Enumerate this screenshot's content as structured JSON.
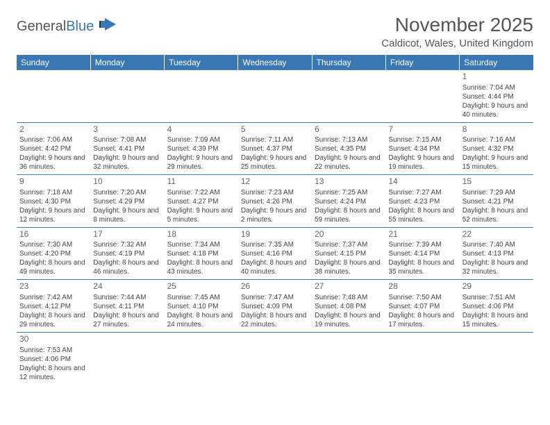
{
  "logo": {
    "text1": "General",
    "text2": "Blue"
  },
  "title": "November 2025",
  "location": "Caldicot, Wales, United Kingdom",
  "colors": {
    "header_bg": "#3a78b5",
    "header_text": "#ffffff",
    "border": "#3a78b5",
    "text": "#444444"
  },
  "weekdays": [
    "Sunday",
    "Monday",
    "Tuesday",
    "Wednesday",
    "Thursday",
    "Friday",
    "Saturday"
  ],
  "weeks": [
    [
      null,
      null,
      null,
      null,
      null,
      null,
      {
        "n": "1",
        "sunrise": "Sunrise: 7:04 AM",
        "sunset": "Sunset: 4:44 PM",
        "daylight": "Daylight: 9 hours and 40 minutes."
      }
    ],
    [
      {
        "n": "2",
        "sunrise": "Sunrise: 7:06 AM",
        "sunset": "Sunset: 4:42 PM",
        "daylight": "Daylight: 9 hours and 36 minutes."
      },
      {
        "n": "3",
        "sunrise": "Sunrise: 7:08 AM",
        "sunset": "Sunset: 4:41 PM",
        "daylight": "Daylight: 9 hours and 32 minutes."
      },
      {
        "n": "4",
        "sunrise": "Sunrise: 7:09 AM",
        "sunset": "Sunset: 4:39 PM",
        "daylight": "Daylight: 9 hours and 29 minutes."
      },
      {
        "n": "5",
        "sunrise": "Sunrise: 7:11 AM",
        "sunset": "Sunset: 4:37 PM",
        "daylight": "Daylight: 9 hours and 25 minutes."
      },
      {
        "n": "6",
        "sunrise": "Sunrise: 7:13 AM",
        "sunset": "Sunset: 4:35 PM",
        "daylight": "Daylight: 9 hours and 22 minutes."
      },
      {
        "n": "7",
        "sunrise": "Sunrise: 7:15 AM",
        "sunset": "Sunset: 4:34 PM",
        "daylight": "Daylight: 9 hours and 19 minutes."
      },
      {
        "n": "8",
        "sunrise": "Sunrise: 7:16 AM",
        "sunset": "Sunset: 4:32 PM",
        "daylight": "Daylight: 9 hours and 15 minutes."
      }
    ],
    [
      {
        "n": "9",
        "sunrise": "Sunrise: 7:18 AM",
        "sunset": "Sunset: 4:30 PM",
        "daylight": "Daylight: 9 hours and 12 minutes."
      },
      {
        "n": "10",
        "sunrise": "Sunrise: 7:20 AM",
        "sunset": "Sunset: 4:29 PM",
        "daylight": "Daylight: 9 hours and 8 minutes."
      },
      {
        "n": "11",
        "sunrise": "Sunrise: 7:22 AM",
        "sunset": "Sunset: 4:27 PM",
        "daylight": "Daylight: 9 hours and 5 minutes."
      },
      {
        "n": "12",
        "sunrise": "Sunrise: 7:23 AM",
        "sunset": "Sunset: 4:26 PM",
        "daylight": "Daylight: 9 hours and 2 minutes."
      },
      {
        "n": "13",
        "sunrise": "Sunrise: 7:25 AM",
        "sunset": "Sunset: 4:24 PM",
        "daylight": "Daylight: 8 hours and 59 minutes."
      },
      {
        "n": "14",
        "sunrise": "Sunrise: 7:27 AM",
        "sunset": "Sunset: 4:23 PM",
        "daylight": "Daylight: 8 hours and 55 minutes."
      },
      {
        "n": "15",
        "sunrise": "Sunrise: 7:29 AM",
        "sunset": "Sunset: 4:21 PM",
        "daylight": "Daylight: 8 hours and 52 minutes."
      }
    ],
    [
      {
        "n": "16",
        "sunrise": "Sunrise: 7:30 AM",
        "sunset": "Sunset: 4:20 PM",
        "daylight": "Daylight: 8 hours and 49 minutes."
      },
      {
        "n": "17",
        "sunrise": "Sunrise: 7:32 AM",
        "sunset": "Sunset: 4:19 PM",
        "daylight": "Daylight: 8 hours and 46 minutes."
      },
      {
        "n": "18",
        "sunrise": "Sunrise: 7:34 AM",
        "sunset": "Sunset: 4:18 PM",
        "daylight": "Daylight: 8 hours and 43 minutes."
      },
      {
        "n": "19",
        "sunrise": "Sunrise: 7:35 AM",
        "sunset": "Sunset: 4:16 PM",
        "daylight": "Daylight: 8 hours and 40 minutes."
      },
      {
        "n": "20",
        "sunrise": "Sunrise: 7:37 AM",
        "sunset": "Sunset: 4:15 PM",
        "daylight": "Daylight: 8 hours and 38 minutes."
      },
      {
        "n": "21",
        "sunrise": "Sunrise: 7:39 AM",
        "sunset": "Sunset: 4:14 PM",
        "daylight": "Daylight: 8 hours and 35 minutes."
      },
      {
        "n": "22",
        "sunrise": "Sunrise: 7:40 AM",
        "sunset": "Sunset: 4:13 PM",
        "daylight": "Daylight: 8 hours and 32 minutes."
      }
    ],
    [
      {
        "n": "23",
        "sunrise": "Sunrise: 7:42 AM",
        "sunset": "Sunset: 4:12 PM",
        "daylight": "Daylight: 8 hours and 29 minutes."
      },
      {
        "n": "24",
        "sunrise": "Sunrise: 7:44 AM",
        "sunset": "Sunset: 4:11 PM",
        "daylight": "Daylight: 8 hours and 27 minutes."
      },
      {
        "n": "25",
        "sunrise": "Sunrise: 7:45 AM",
        "sunset": "Sunset: 4:10 PM",
        "daylight": "Daylight: 8 hours and 24 minutes."
      },
      {
        "n": "26",
        "sunrise": "Sunrise: 7:47 AM",
        "sunset": "Sunset: 4:09 PM",
        "daylight": "Daylight: 8 hours and 22 minutes."
      },
      {
        "n": "27",
        "sunrise": "Sunrise: 7:48 AM",
        "sunset": "Sunset: 4:08 PM",
        "daylight": "Daylight: 8 hours and 19 minutes."
      },
      {
        "n": "28",
        "sunrise": "Sunrise: 7:50 AM",
        "sunset": "Sunset: 4:07 PM",
        "daylight": "Daylight: 8 hours and 17 minutes."
      },
      {
        "n": "29",
        "sunrise": "Sunrise: 7:51 AM",
        "sunset": "Sunset: 4:06 PM",
        "daylight": "Daylight: 8 hours and 15 minutes."
      }
    ],
    [
      {
        "n": "30",
        "sunrise": "Sunrise: 7:53 AM",
        "sunset": "Sunset: 4:06 PM",
        "daylight": "Daylight: 8 hours and 12 minutes."
      },
      null,
      null,
      null,
      null,
      null,
      null
    ]
  ]
}
